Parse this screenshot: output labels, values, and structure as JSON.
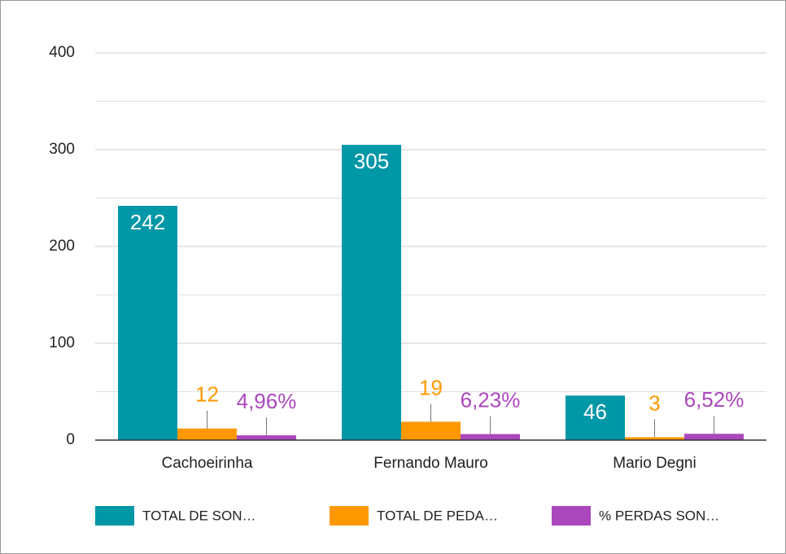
{
  "chart_data": {
    "type": "bar",
    "categories": [
      "Cachoeirinha",
      "Fernando Mauro",
      "Mario Degni"
    ],
    "series": [
      {
        "name": "TOTAL DE SON…",
        "color": "#0097a7",
        "values": [
          242,
          305,
          46
        ]
      },
      {
        "name": "TOTAL DE PEDA…",
        "color": "#ff9800",
        "values": [
          12,
          19,
          3
        ]
      },
      {
        "name": "% PERDAS SON…",
        "color": "#ab47bc",
        "values": [
          4.96,
          6.23,
          6.52
        ],
        "value_labels": [
          "4,96%",
          "6,23%",
          "6,52%"
        ]
      }
    ],
    "ylim": [
      0,
      400
    ],
    "yticks": [
      0,
      100,
      200,
      300,
      400
    ],
    "minor_yticks": [
      50,
      150,
      250,
      350
    ],
    "grid": true,
    "legend": "bottom"
  }
}
